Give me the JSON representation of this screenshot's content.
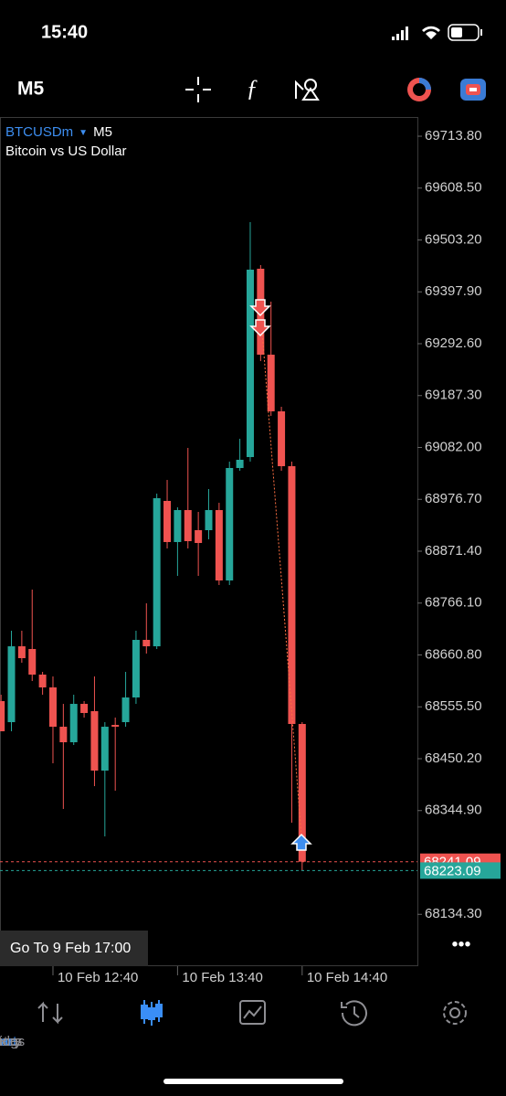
{
  "status_bar": {
    "time": "15:40"
  },
  "toolbar": {
    "timeframe": "M5"
  },
  "chart_data": {
    "type": "candlestick",
    "symbol": "BTCUSDm",
    "timeframe": "M5",
    "subtitle": "Bitcoin vs US Dollar",
    "open": [
      68567.1,
      68524.4,
      68678.4,
      68672.9,
      68620.9,
      68594.9,
      68515.1,
      68483.6,
      68561.5,
      68546.7,
      68426.1,
      68518.8,
      68524.4,
      68574.5,
      68691.4,
      68678.4,
      68973.5,
      68890.0,
      68954.9,
      68914.1,
      68914.1,
      68954.9,
      68812.0,
      69040.3,
      69062.5,
      69444.8,
      69270.3,
      69155.3,
      69044.0,
      68520.7
    ],
    "high": [
      68580.1,
      68710.0,
      68710.0,
      68793.5,
      68626.5,
      68617.2,
      68561.5,
      68580.1,
      68567.1,
      68617.2,
      68524.4,
      68533.7,
      68626.5,
      68710.0,
      68765.6,
      68988.3,
      69016.1,
      68960.5,
      69081.1,
      68951.2,
      68997.6,
      68969.7,
      69053.2,
      69099.6,
      69539.4,
      69452.2,
      69378.0,
      69164.6,
      69053.2,
      68524.4
    ],
    "low": [
      68505.9,
      68505.9,
      68645.0,
      68607.9,
      68580.1,
      68440.9,
      68348.2,
      68478.0,
      68533.7,
      68394.5,
      68292.5,
      68385.3,
      68515.1,
      68561.5,
      68663.6,
      68672.9,
      68877.0,
      68821.3,
      68877.0,
      68821.3,
      68895.5,
      68802.8,
      68802.8,
      69034.7,
      69053.2,
      69257.3,
      69146.0,
      69034.7,
      68320.3,
      68223.1
    ],
    "close": [
      68505.9,
      68678.4,
      68654.3,
      68620.9,
      68594.9,
      68515.1,
      68483.6,
      68561.5,
      68543.0,
      68426.1,
      68515.1,
      68515.1,
      68574.5,
      68691.4,
      68678.4,
      68979.0,
      68890.0,
      68954.9,
      68891.8,
      68888.1,
      68954.9,
      68812.0,
      69040.3,
      69057.0,
      69442.9,
      69270.3,
      69155.3,
      69044.0,
      68520.7,
      68241.1
    ],
    "up_color": "#26a69a",
    "down_color": "#ef5350",
    "xlim": [
      -0.1,
      40.1
    ],
    "ylim": [
      68029.0,
      69752.8
    ],
    "yticks": [
      {
        "value": 69713.8,
        "label": "69713.80"
      },
      {
        "value": 69608.5,
        "label": "69608.50"
      },
      {
        "value": 69503.2,
        "label": "69503.20"
      },
      {
        "value": 69397.9,
        "label": "69397.90"
      },
      {
        "value": 69292.6,
        "label": "69292.60"
      },
      {
        "value": 69187.3,
        "label": "69187.30"
      },
      {
        "value": 69082.0,
        "label": "69082.00"
      },
      {
        "value": 68976.7,
        "label": "68976.70"
      },
      {
        "value": 68871.4,
        "label": "68871.40"
      },
      {
        "value": 68766.1,
        "label": "68766.10"
      },
      {
        "value": 68660.8,
        "label": "68660.80"
      },
      {
        "value": 68555.5,
        "label": "68555.50"
      },
      {
        "value": 68450.2,
        "label": "68450.20"
      },
      {
        "value": 68344.9,
        "label": "68344.90"
      },
      {
        "value": 68134.3,
        "label": "68134.30"
      }
    ],
    "xticks": [
      {
        "value": 5,
        "label": "10 Feb 12:40"
      },
      {
        "value": 17,
        "label": "10 Feb 13:40"
      },
      {
        "value": 29,
        "label": "10 Feb 14:40"
      }
    ],
    "price_lines": [
      {
        "value": 68241.09,
        "color": "#ef5350"
      },
      {
        "value": 68223.09,
        "color": "#26a69a"
      }
    ]
  },
  "go_to_button": "Go To 9 Feb 17:00",
  "tabs": [
    "Quotes",
    "Chart",
    "Trade",
    "History",
    "Settings"
  ],
  "active_tab": 1
}
